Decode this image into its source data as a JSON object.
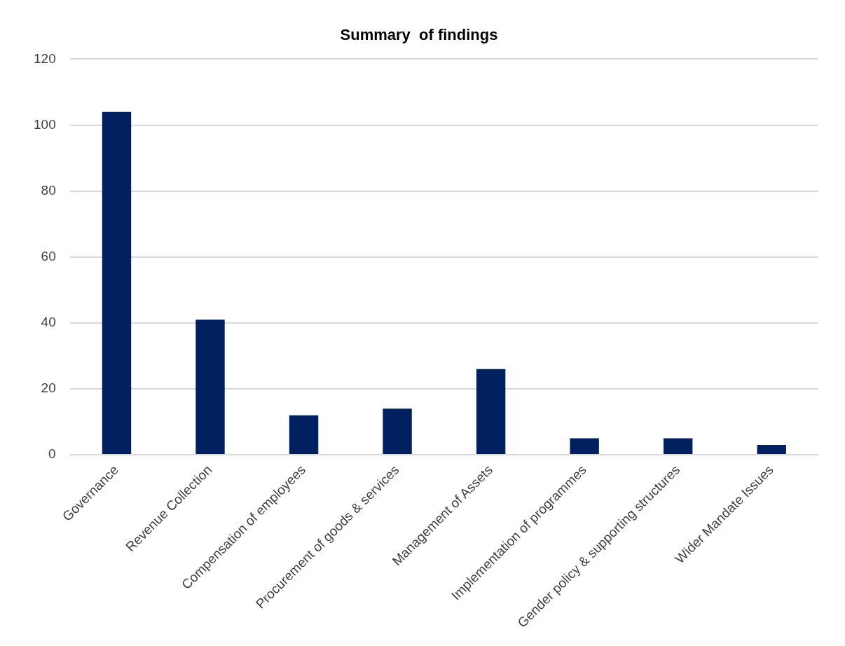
{
  "chart_data": {
    "type": "bar",
    "title": "Summary  of findings",
    "categories": [
      "Governance",
      "Revenue Collection",
      "Compensation of employees",
      "Procurement of goods & services",
      "Management of Assets",
      "Implementation of programmes",
      "Gender policy & supporting structures",
      "Wider Mandate Issues"
    ],
    "values": [
      104,
      41,
      12,
      14,
      26,
      5,
      5,
      3
    ],
    "color": "#002060",
    "ylim": [
      0,
      120
    ],
    "yticks": [
      0,
      20,
      40,
      60,
      80,
      100,
      120
    ],
    "grid": "y",
    "legend": false
  }
}
